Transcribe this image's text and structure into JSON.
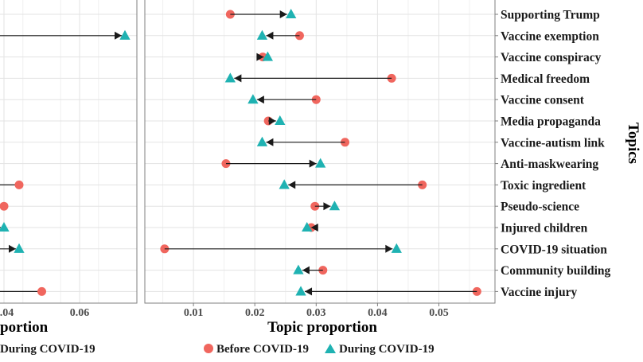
{
  "colors": {
    "before": "#F0665E",
    "during": "#1FB2B2",
    "arrow": "#1a1a1a",
    "grid_major": "#e3e3e3",
    "grid_minor": "#f0f0f0",
    "frame": "#7f7f7f"
  },
  "chart_data": {
    "type": "dumbbell",
    "left_panel": {
      "x_tick_labels": [
        "0.04",
        "0.06"
      ],
      "xlabel_visible": "portion",
      "legend_visible_text": "During COVID-19",
      "rows": [
        {
          "row": 2,
          "during": 0.072
        },
        {
          "row": 9,
          "before": 0.044
        },
        {
          "row": 10,
          "before": 0.04
        },
        {
          "row": 11,
          "during": 0.04
        },
        {
          "row": 12,
          "during": 0.044
        },
        {
          "row": 14,
          "before": 0.05
        }
      ]
    },
    "main_panel": {
      "categories": [
        "Supporting Trump",
        "Vaccine exemption",
        "Vaccine conspiracy",
        "Medical freedom",
        "Vaccine consent",
        "Media propaganda",
        "Vaccine-autism link",
        "Anti-maskwearing",
        "Toxic ingredient",
        "Pseudo-science",
        "Injured children",
        "COVID-19 situation",
        "Community building",
        "Vaccine injury"
      ],
      "series": [
        {
          "name": "Before COVID-19",
          "values": [
            0.016,
            0.0273,
            0.0213,
            0.0423,
            0.03,
            0.0222,
            0.0347,
            0.0153,
            0.0473,
            0.0298,
            0.0292,
            0.0053,
            0.0311,
            0.0562
          ]
        },
        {
          "name": "During COVID-19",
          "values": [
            0.0259,
            0.0212,
            0.0221,
            0.016,
            0.0197,
            0.0241,
            0.0212,
            0.0307,
            0.0248,
            0.033,
            0.0285,
            0.0431,
            0.0271,
            0.0275
          ]
        }
      ],
      "xlabel": "Topic proportion",
      "ylabel": "Topics",
      "x_tick_labels": [
        "0.01",
        "0.02",
        "0.03",
        "0.04",
        "0.05"
      ],
      "x_ticks": [
        0.01,
        0.02,
        0.03,
        0.04,
        0.05
      ],
      "grid": true
    },
    "legend": {
      "position": "bottom",
      "items": [
        {
          "label": "Before COVID-19",
          "shape": "circle"
        },
        {
          "label": "During COVID-19",
          "shape": "triangle"
        }
      ]
    }
  }
}
